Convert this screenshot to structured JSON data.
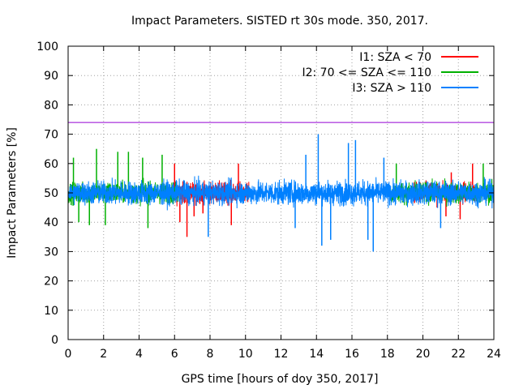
{
  "chart_data": {
    "type": "line",
    "title": "Impact Parameters. SISTED rt 30s mode. 350, 2017.",
    "xlabel": "GPS time [hours of doy 350, 2017]",
    "ylabel": "Impact Parameters [%]",
    "xlim": [
      0,
      24
    ],
    "ylim": [
      0,
      100
    ],
    "xticks": [
      0,
      2,
      4,
      6,
      8,
      10,
      12,
      14,
      16,
      18,
      20,
      22,
      24
    ],
    "yticks": [
      0,
      10,
      20,
      30,
      40,
      50,
      60,
      70,
      80,
      90,
      100
    ],
    "grid": true,
    "legend_position": "top-right",
    "threshold": {
      "y": 74,
      "color": "#9400d3"
    },
    "series": [
      {
        "name": "I1: SZA < 70",
        "color": "#ff0000",
        "segments": [
          [
            5.8,
            10.2
          ],
          [
            19.5,
            23.0
          ]
        ],
        "points": [
          [
            6.0,
            60
          ],
          [
            6.3,
            40
          ],
          [
            6.7,
            35
          ],
          [
            7.1,
            42
          ],
          [
            7.6,
            43
          ],
          [
            9.2,
            39
          ],
          [
            9.6,
            60
          ],
          [
            20.8,
            45
          ],
          [
            21.3,
            42
          ],
          [
            21.6,
            57
          ],
          [
            22.1,
            41
          ],
          [
            22.8,
            60
          ]
        ]
      },
      {
        "name": "I2: 70 <= SZA <= 110",
        "color": "#00b000",
        "segments": [
          [
            0,
            6.2
          ],
          [
            18.2,
            24
          ]
        ],
        "points": [
          [
            0.3,
            62
          ],
          [
            0.6,
            40
          ],
          [
            1.2,
            39
          ],
          [
            1.6,
            65
          ],
          [
            2.1,
            39
          ],
          [
            2.8,
            64
          ],
          [
            3.4,
            64
          ],
          [
            4.2,
            62
          ],
          [
            4.5,
            38
          ],
          [
            5.3,
            63
          ],
          [
            18.5,
            60
          ],
          [
            23.4,
            60
          ]
        ]
      },
      {
        "name": "I3: SZA > 110",
        "color": "#0080ff",
        "segments": [
          [
            0,
            24
          ]
        ],
        "points": [
          [
            7.9,
            35
          ],
          [
            12.8,
            38
          ],
          [
            13.4,
            63
          ],
          [
            14.1,
            70
          ],
          [
            14.3,
            32
          ],
          [
            14.8,
            34
          ],
          [
            15.8,
            67
          ],
          [
            16.2,
            68
          ],
          [
            16.9,
            34
          ],
          [
            17.2,
            30
          ],
          [
            17.8,
            62
          ],
          [
            21.0,
            38
          ]
        ]
      }
    ]
  }
}
